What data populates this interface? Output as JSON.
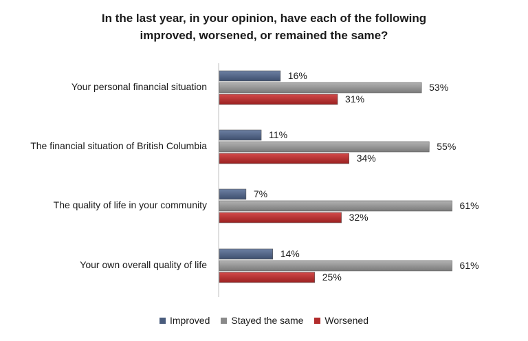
{
  "chart_data": {
    "type": "bar",
    "orientation": "horizontal",
    "title_lines": [
      "In the last year, in your opinion, have each of the following",
      "improved, worsened, or remained the same?"
    ],
    "categories": [
      "Your personal financial situation",
      "The financial situation of British Columbia",
      "The quality of life in your community",
      "Your own overall quality of life"
    ],
    "series": [
      {
        "name": "Improved",
        "values": [
          16,
          11,
          7,
          14
        ],
        "labels": [
          "16%",
          "11%",
          "7%",
          "14%"
        ]
      },
      {
        "name": "Stayed the same",
        "values": [
          53,
          55,
          61,
          61
        ],
        "labels": [
          "53%",
          "55%",
          "61%",
          "61%"
        ]
      },
      {
        "name": "Worsened",
        "values": [
          31,
          34,
          32,
          25
        ],
        "labels": [
          "31%",
          "34%",
          "32%",
          "25%"
        ]
      }
    ],
    "xlim": [
      0,
      100
    ],
    "grid": false,
    "legend_position": "bottom",
    "colors": {
      "Improved": "#4a5c7d",
      "Stayed the same": "#8a8a8a",
      "Worsened": "#b22c2c"
    }
  }
}
